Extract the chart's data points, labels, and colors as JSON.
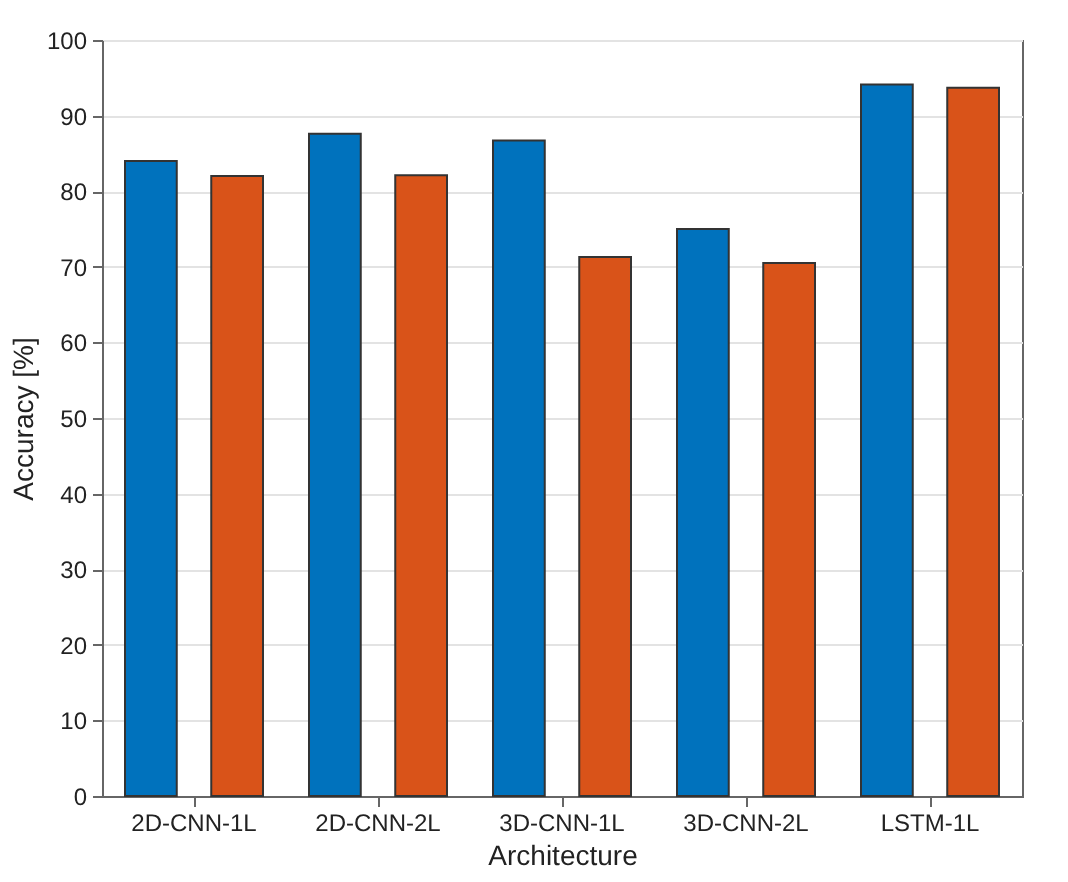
{
  "chart_data": {
    "type": "bar",
    "xlabel": "Architecture",
    "ylabel": "Accuracy [%]",
    "categories": [
      "2D-CNN-1L",
      "2D-CNN-2L",
      "3D-CNN-1L",
      "3D-CNN-2L",
      "LSTM-1L"
    ],
    "series": [
      {
        "color": "#0072bd",
        "values": [
          84.0,
          87.6,
          86.7,
          75.0,
          94.1
        ]
      },
      {
        "color": "#d95319",
        "values": [
          82.0,
          82.1,
          71.3,
          70.5,
          93.7
        ]
      }
    ],
    "ylim": [
      0,
      100
    ],
    "yticks": [
      0,
      10,
      20,
      30,
      40,
      50,
      60,
      70,
      80,
      90,
      100
    ],
    "grid": "y",
    "legend": false
  }
}
